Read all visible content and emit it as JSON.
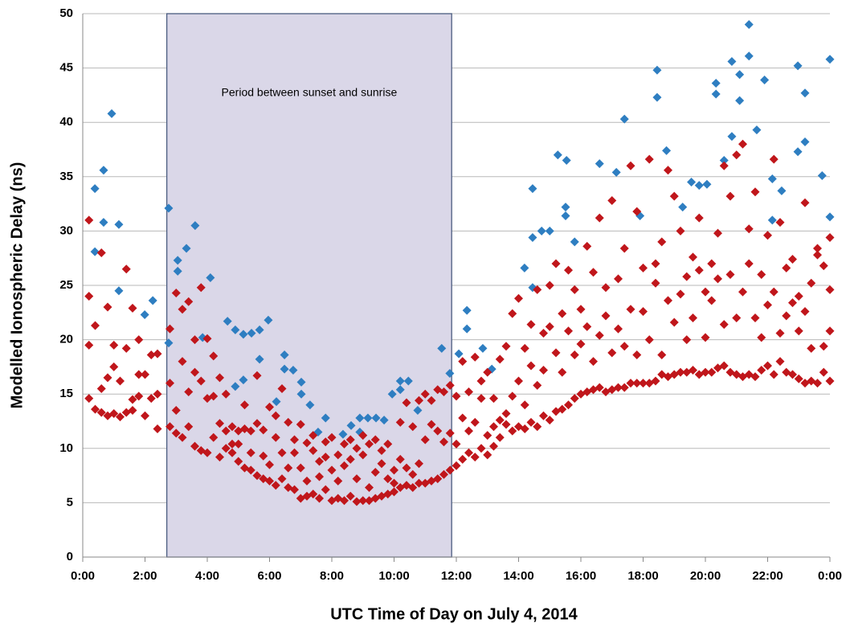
{
  "chart_data": {
    "type": "scatter",
    "x_label": "UTC Time of Day on July 4, 2014",
    "y_label": "Modelled Ionospheric Delay (ns)",
    "xlim": [
      0,
      24
    ],
    "ylim": [
      0,
      50
    ],
    "xticks": [
      {
        "value": 0,
        "label": "0:00"
      },
      {
        "value": 2,
        "label": "2:00"
      },
      {
        "value": 4,
        "label": "4:00"
      },
      {
        "value": 6,
        "label": "6:00"
      },
      {
        "value": 8,
        "label": "8:00"
      },
      {
        "value": 10,
        "label": "10:00"
      },
      {
        "value": 12,
        "label": "12:00"
      },
      {
        "value": 14,
        "label": "14:00"
      },
      {
        "value": 16,
        "label": "16:00"
      },
      {
        "value": 18,
        "label": "18:00"
      },
      {
        "value": 20,
        "label": "20:00"
      },
      {
        "value": 22,
        "label": "22:00"
      },
      {
        "value": 24,
        "label": "0:00"
      }
    ],
    "yticks": [
      0,
      5,
      10,
      15,
      20,
      25,
      30,
      35,
      40,
      45,
      50
    ],
    "grid": true,
    "shaded_region": {
      "x": [
        2.7,
        11.85
      ],
      "label": "Period between sunset and sunrise",
      "color": "#dad7e8"
    },
    "series": [
      {
        "color": "#2e7ec1",
        "x": [
          0.39,
          0.39,
          0.67,
          0.67,
          0.93,
          1.16,
          1.16,
          1.99,
          2.25,
          2.76,
          2.76,
          3.05,
          3.05,
          3.33,
          3.61,
          3.85,
          4.1,
          4.65,
          4.9,
          5.16,
          5.42,
          5.68,
          5.96,
          5.68,
          5.16,
          4.9,
          6.22,
          6.48,
          6.48,
          6.76,
          7.02,
          7.02,
          7.3,
          7.56,
          7.8,
          8.36,
          8.62,
          8.9,
          8.9,
          9.16,
          9.42,
          9.68,
          9.94,
          10.2,
          10.2,
          10.46,
          10.76,
          11.53,
          11.79,
          12.08,
          12.34,
          12.34,
          12.85,
          13.14,
          14.19,
          14.45,
          14.45,
          14.45,
          14.74,
          15.0,
          15.26,
          15.51,
          15.51,
          15.8,
          15.54,
          16.6,
          17.14,
          17.4,
          17.9,
          18.45,
          18.45,
          18.75,
          19.27,
          19.55,
          19.8,
          20.05,
          20.34,
          20.34,
          20.6,
          20.85,
          20.85,
          21.1,
          21.1,
          21.4,
          21.4,
          21.65,
          21.9,
          22.15,
          22.15,
          22.45,
          22.97,
          22.97,
          23.2,
          23.2,
          23.75,
          24,
          24
        ],
        "values": [
          33.9,
          28.1,
          35.6,
          30.8,
          40.8,
          30.6,
          24.5,
          22.3,
          23.6,
          32.1,
          19.7,
          27.3,
          26.3,
          28.4,
          30.5,
          20.2,
          25.7,
          21.7,
          20.9,
          20.5,
          20.6,
          20.9,
          21.8,
          18.2,
          16.3,
          15.7,
          14.3,
          18.6,
          17.3,
          17.2,
          16.1,
          15.0,
          14.0,
          11.5,
          12.8,
          11.3,
          12.1,
          12.8,
          11.5,
          12.8,
          12.8,
          12.6,
          15.0,
          16.2,
          15.4,
          16.2,
          13.5,
          19.2,
          16.9,
          18.7,
          22.7,
          21.0,
          19.2,
          17.3,
          26.6,
          33.9,
          29.4,
          24.8,
          30.0,
          30.0,
          37.0,
          32.2,
          31.4,
          29.0,
          36.5,
          36.2,
          35.4,
          40.3,
          31.4,
          44.8,
          42.3,
          37.4,
          32.2,
          34.5,
          34.2,
          34.3,
          43.6,
          42.6,
          36.5,
          45.6,
          38.7,
          44.4,
          42.0,
          49.0,
          46.1,
          39.3,
          43.9,
          31.0,
          34.8,
          33.7,
          45.2,
          37.3,
          42.7,
          38.2,
          35.1,
          45.8,
          31.3
        ]
      },
      {
        "color": "#c0161b",
        "x": [
          0.2,
          0.2,
          0.2,
          0.2,
          0.4,
          0.4,
          0.6,
          0.6,
          0.6,
          0.8,
          0.8,
          0.8,
          1.0,
          1.0,
          1.0,
          1.2,
          1.2,
          1.4,
          1.4,
          1.4,
          1.6,
          1.6,
          1.6,
          1.8,
          1.8,
          1.8,
          2.0,
          2.0,
          2.2,
          2.2,
          2.4,
          2.4,
          2.4,
          2.8,
          2.8,
          2.8,
          3.0,
          3.0,
          3.0,
          3.2,
          3.2,
          3.2,
          3.4,
          3.4,
          3.4,
          3.6,
          3.6,
          3.6,
          3.8,
          3.8,
          3.8,
          4.0,
          4.0,
          4.0,
          4.2,
          4.2,
          4.2,
          4.4,
          4.4,
          4.4,
          4.6,
          4.6,
          4.6,
          4.8,
          4.8,
          4.8,
          5.0,
          5.0,
          5.0,
          5.2,
          5.2,
          5.2,
          5.4,
          5.4,
          5.4,
          5.6,
          5.6,
          5.6,
          5.8,
          5.8,
          5.8,
          6.0,
          6.0,
          6.0,
          6.2,
          6.2,
          6.2,
          6.4,
          6.4,
          6.4,
          6.6,
          6.6,
          6.6,
          6.8,
          6.8,
          6.8,
          7.0,
          7.0,
          7.0,
          7.2,
          7.2,
          7.2,
          7.4,
          7.4,
          7.4,
          7.6,
          7.6,
          7.6,
          7.8,
          7.8,
          7.8,
          8.0,
          8.0,
          8.0,
          8.2,
          8.2,
          8.2,
          8.4,
          8.4,
          8.4,
          8.6,
          8.6,
          8.6,
          8.8,
          8.8,
          8.8,
          9.0,
          9.0,
          9.0,
          9.2,
          9.2,
          9.2,
          9.4,
          9.4,
          9.4,
          9.6,
          9.6,
          9.6,
          9.8,
          9.8,
          9.8,
          10.0,
          10.0,
          10.0,
          10.2,
          10.2,
          10.2,
          10.4,
          10.4,
          10.4,
          10.6,
          10.6,
          10.6,
          10.8,
          10.8,
          10.8,
          11.0,
          11.0,
          11.0,
          11.2,
          11.2,
          11.2,
          11.4,
          11.4,
          11.4,
          11.6,
          11.6,
          11.6,
          11.8,
          11.8,
          11.8,
          12.0,
          12.0,
          12.0,
          12.2,
          12.2,
          12.2,
          12.4,
          12.4,
          12.4,
          12.6,
          12.6,
          12.6,
          12.8,
          12.8,
          12.8,
          13.0,
          13.0,
          13.0,
          13.2,
          13.2,
          13.2,
          13.4,
          13.4,
          13.4,
          13.6,
          13.6,
          13.6,
          13.8,
          13.8,
          13.8,
          14.0,
          14.0,
          14.0,
          14.2,
          14.2,
          14.2,
          14.4,
          14.4,
          14.4,
          14.6,
          14.6,
          14.6,
          14.8,
          14.8,
          14.8,
          15.0,
          15.0,
          15.0,
          15.2,
          15.2,
          15.2,
          15.4,
          15.4,
          15.4,
          15.6,
          15.6,
          15.6,
          15.8,
          15.8,
          15.8,
          16.0,
          16.0,
          16.0,
          16.2,
          16.2,
          16.2,
          16.4,
          16.4,
          16.4,
          16.6,
          16.6,
          16.6,
          16.8,
          16.8,
          16.8,
          17.0,
          17.0,
          17.0,
          17.2,
          17.2,
          17.2,
          17.4,
          17.4,
          17.4,
          17.6,
          17.6,
          17.6,
          17.8,
          17.8,
          17.8,
          18.0,
          18.0,
          18.0,
          18.2,
          18.2,
          18.2,
          18.4,
          18.4,
          18.4,
          18.6,
          18.6,
          18.6,
          18.8,
          18.8,
          18.8,
          19.0,
          19.0,
          19.0,
          19.2,
          19.2,
          19.2,
          19.4,
          19.4,
          19.4,
          19.6,
          19.6,
          19.6,
          19.8,
          19.8,
          19.8,
          20.0,
          20.0,
          20.0,
          20.2,
          20.2,
          20.2,
          20.4,
          20.4,
          20.4,
          20.6,
          20.6,
          20.6,
          20.8,
          20.8,
          20.8,
          21.0,
          21.0,
          21.0,
          21.2,
          21.2,
          21.2,
          21.4,
          21.4,
          21.4,
          21.6,
          21.6,
          21.6,
          21.8,
          21.8,
          21.8,
          22.0,
          22.0,
          22.0,
          22.2,
          22.2,
          22.2,
          22.4,
          22.4,
          22.4,
          22.6,
          22.6,
          22.6,
          22.8,
          22.8,
          22.8,
          23.0,
          23.0,
          23.0,
          23.2,
          23.2,
          23.2,
          23.4,
          23.4,
          23.4,
          23.6,
          23.6,
          23.6,
          23.8,
          23.8,
          23.8,
          24.0,
          24.0,
          24.0,
          24.0
        ],
        "values": [
          14.6,
          19.5,
          24,
          31,
          13.6,
          21.3,
          13.3,
          15.5,
          28,
          13.0,
          16.5,
          23,
          13.2,
          17.5,
          19.5,
          12.9,
          16.2,
          13.3,
          19.2,
          26.5,
          13.5,
          14.5,
          22.9,
          14.8,
          16.8,
          20,
          13.0,
          16.8,
          14.6,
          18.6,
          11.8,
          15.0,
          18.7,
          12.0,
          16.0,
          21,
          11.4,
          13.5,
          24.3,
          11.0,
          18.0,
          22.8,
          12.0,
          15.2,
          23.5,
          10.2,
          17.0,
          20.0,
          9.8,
          16.2,
          24.8,
          9.6,
          14.6,
          20.1,
          11.0,
          14.8,
          18.5,
          9.2,
          12.3,
          16.5,
          11.6,
          15.0,
          10.0,
          9.6,
          10.4,
          12.0,
          8.8,
          10.4,
          11.6,
          8.2,
          11.8,
          14.0,
          8.0,
          9.6,
          11.6,
          7.5,
          12.3,
          16.7,
          7.2,
          9.3,
          11.7,
          7.0,
          8.5,
          13.8,
          6.6,
          11.0,
          13.0,
          7.2,
          9.6,
          15.5,
          6.4,
          8.2,
          12.4,
          6.2,
          9.6,
          10.8,
          5.4,
          8.2,
          12.2,
          5.6,
          7.0,
          10.5,
          5.8,
          9.8,
          11.2,
          5.4,
          7.4,
          8.8,
          6.2,
          9.2,
          10.6,
          5.2,
          8.0,
          11.0,
          5.4,
          7.0,
          9.4,
          5.2,
          8.4,
          10.4,
          5.6,
          9.0,
          10.8,
          5.1,
          7.2,
          10.0,
          5.2,
          9.4,
          11.2,
          5.2,
          6.4,
          10.4,
          5.4,
          7.8,
          10.8,
          5.6,
          8.6,
          9.8,
          5.8,
          7.2,
          10.4,
          6.0,
          6.8,
          8.0,
          6.4,
          9.0,
          12.4,
          6.6,
          8.2,
          14.2,
          6.4,
          7.6,
          12.0,
          6.8,
          8.6,
          14.4,
          6.8,
          10.8,
          15.0,
          7.0,
          12.2,
          14.4,
          7.2,
          11.6,
          15.4,
          7.6,
          10.6,
          15.2,
          8.0,
          11.4,
          15.8,
          8.4,
          10.4,
          14.8,
          9.0,
          12.8,
          18.0,
          9.6,
          11.6,
          15.2,
          9.2,
          12.4,
          18.4,
          10.0,
          14.6,
          16.2,
          9.4,
          11.2,
          17.0,
          10.2,
          12.0,
          14.6,
          11.0,
          12.6,
          18.2,
          12.2,
          13.2,
          19.4,
          11.6,
          14.8,
          22.4,
          12.0,
          16.2,
          23.8,
          11.8,
          14.0,
          19.2,
          12.4,
          17.6,
          21.4,
          12.0,
          15.8,
          24.6,
          13.0,
          17.2,
          20.6,
          12.6,
          21.2,
          25.0,
          13.4,
          18.8,
          27.0,
          13.6,
          17.0,
          22.4,
          14.0,
          20.8,
          26.4,
          14.6,
          18.6,
          24.6,
          15.0,
          19.6,
          22.8,
          15.2,
          21.2,
          28.6,
          15.4,
          18.0,
          26.2,
          15.6,
          20.4,
          31.2,
          15.2,
          22.2,
          24.8,
          15.4,
          18.8,
          32.8,
          15.6,
          21.0,
          25.6,
          15.6,
          19.4,
          28.4,
          16.0,
          22.8,
          36.0,
          16.0,
          18.6,
          31.8,
          16.0,
          22.6,
          26.6,
          16.0,
          20.0,
          36.6,
          16.2,
          25.2,
          27.0,
          16.8,
          18.6,
          29.0,
          16.6,
          23.6,
          35.6,
          16.8,
          21.6,
          33.2,
          17.0,
          24.2,
          30.0,
          17.0,
          25.8,
          20.0,
          17.2,
          22.0,
          27.6,
          16.8,
          26.4,
          31.2,
          17.0,
          20.2,
          24.4,
          17.0,
          23.6,
          27.0,
          17.4,
          25.6,
          29.8,
          17.6,
          21.4,
          36.0,
          17.0,
          26.0,
          33.2,
          16.8,
          22.0,
          37.0,
          16.6,
          24.4,
          38.0,
          16.8,
          27.0,
          30.2,
          16.6,
          22.0,
          33.6,
          17.2,
          26.0,
          20.2,
          17.6,
          23.2,
          29.6,
          16.8,
          24.4,
          36.6,
          18.0,
          20.6,
          30.8,
          17.0,
          22.2,
          26.6,
          16.8,
          23.4,
          27.4,
          16.4,
          20.8,
          24.0,
          16.0,
          22.6,
          32.6,
          16.2,
          25.2,
          19.2,
          16.0,
          27.8,
          28.4,
          17.0,
          19.4,
          26.8,
          16.2,
          20.8,
          24.6,
          29.4
        ]
      }
    ]
  }
}
